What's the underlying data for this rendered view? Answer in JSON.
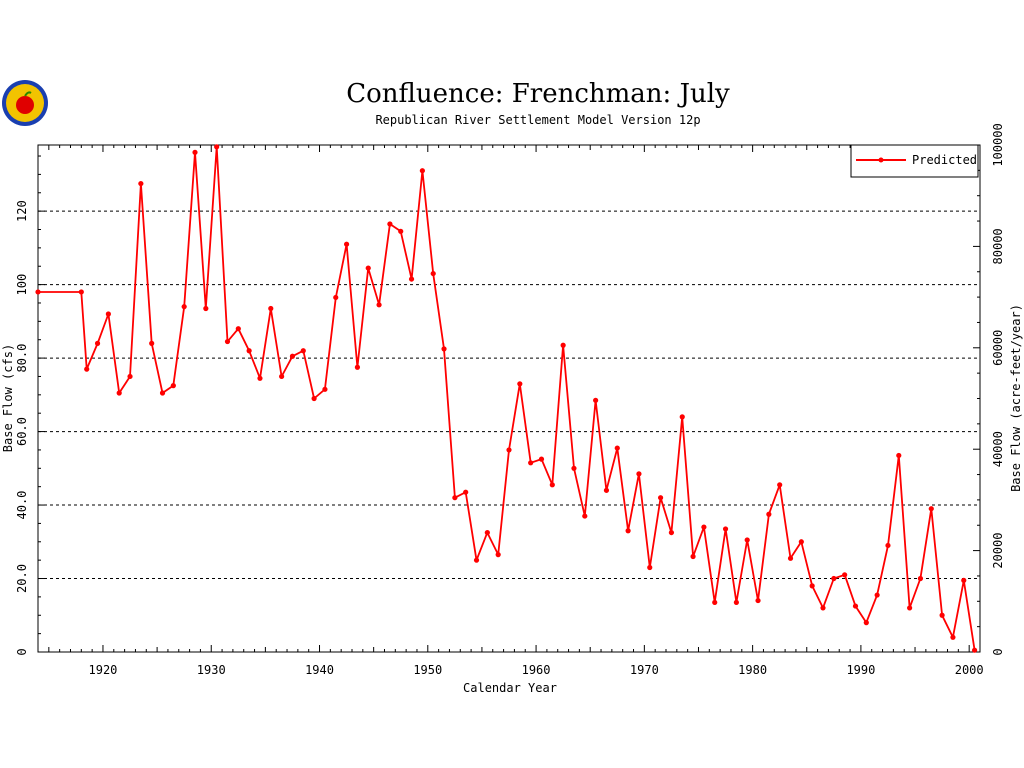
{
  "chart_data": {
    "type": "line",
    "title": "Confluence: Frenchman: July",
    "subtitle": "Republican River Settlement Model Version 12p",
    "xlabel": "Calendar Year",
    "ylabel": "Base Flow (cfs)",
    "y2label": "Base Flow (acre-feet/year)",
    "xlim": [
      1914,
      2001
    ],
    "ylim": [
      0,
      138
    ],
    "y2lim": [
      0,
      100000
    ],
    "x_ticks": [
      1920,
      1930,
      1940,
      1950,
      1960,
      1970,
      1980,
      1990,
      2000
    ],
    "y_ticks": [
      0,
      20,
      40,
      60,
      80,
      100,
      120
    ],
    "y_tick_labels": [
      "0",
      "20.0",
      "40.0",
      "60.0",
      "80.0",
      "100",
      "120"
    ],
    "y2_ticks": [
      0,
      20000,
      40000,
      60000,
      80000,
      100000
    ],
    "y2_tick_labels": [
      "0",
      "20000",
      "40000",
      "60000",
      "80000",
      "100000"
    ],
    "grid": "horizontal-dashed",
    "legend_position": "top-right",
    "colors": {
      "series": "#ff0000",
      "axis": "#000000",
      "grid": "#000000"
    },
    "series": [
      {
        "name": "Predicted",
        "x": [
          1914,
          1918,
          1918.5,
          1919.5,
          1920.5,
          1921.5,
          1922.5,
          1923.5,
          1924.5,
          1925.5,
          1926.5,
          1927.5,
          1928.5,
          1929.5,
          1930.5,
          1931.5,
          1932.5,
          1933.5,
          1934.5,
          1935.5,
          1936.5,
          1937.5,
          1938.5,
          1939.5,
          1940.5,
          1941.5,
          1942.5,
          1943.5,
          1944.5,
          1945.5,
          1946.5,
          1947.5,
          1948.5,
          1949.5,
          1950.5,
          1951.5,
          1952.5,
          1953.5,
          1954.5,
          1955.5,
          1956.5,
          1957.5,
          1958.5,
          1959.5,
          1960.5,
          1961.5,
          1962.5,
          1963.5,
          1964.5,
          1965.5,
          1966.5,
          1967.5,
          1968.5,
          1969.5,
          1970.5,
          1971.5,
          1972.5,
          1973.5,
          1974.5,
          1975.5,
          1976.5,
          1977.5,
          1978.5,
          1979.5,
          1980.5,
          1981.5,
          1982.5,
          1983.5,
          1984.5,
          1985.5,
          1986.5,
          1987.5,
          1988.5,
          1989.5,
          1990.5,
          1991.5,
          1992.5,
          1993.5,
          1994.5,
          1995.5,
          1996.5,
          1997.5,
          1998.5,
          1999.5,
          2000.5
        ],
        "values": [
          98,
          98,
          77,
          84,
          92,
          70.5,
          75,
          127.5,
          84,
          70.5,
          72.5,
          94,
          136,
          93.5,
          137.5,
          84.5,
          88,
          82,
          74.5,
          93.5,
          75,
          80.5,
          82,
          69,
          71.5,
          96.5,
          111,
          77.5,
          104.5,
          94.5,
          116.5,
          114.5,
          101.5,
          131,
          103,
          82.5,
          42,
          43.5,
          25,
          32.5,
          26.5,
          55,
          73,
          51.5,
          52.5,
          45.5,
          83.5,
          50,
          37,
          68.5,
          44,
          55.5,
          33,
          48.5,
          23,
          42,
          32.5,
          64,
          26,
          34,
          13.5,
          33.5,
          13.5,
          30.5,
          14,
          37.5,
          45.5,
          25.5,
          30,
          18,
          12,
          20,
          21,
          12.5,
          8,
          15.5,
          29,
          53.5,
          12,
          20,
          39,
          10,
          4,
          19.5,
          0.5
        ]
      }
    ]
  }
}
